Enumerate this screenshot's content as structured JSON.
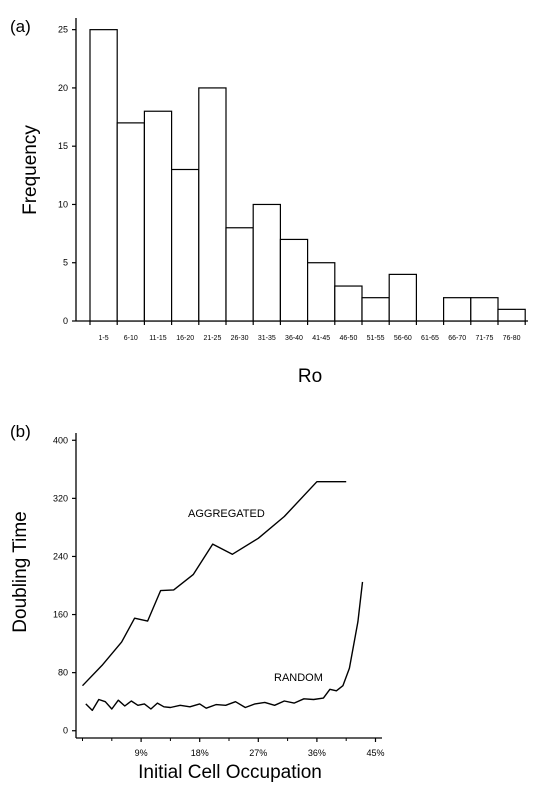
{
  "chart_data": [
    {
      "panel_label": "(a)",
      "type": "bar",
      "xlabel": "Ro",
      "ylabel": "Frequency",
      "ylim": [
        0,
        26
      ],
      "yticks": [
        0,
        5,
        10,
        15,
        20,
        25
      ],
      "categories": [
        "1-5",
        "6-10",
        "11-15",
        "16-20",
        "21-25",
        "26-30",
        "31-35",
        "36-40",
        "41-45",
        "46-50",
        "51-55",
        "56-60",
        "61-65",
        "66-70",
        "71-75",
        "76-80"
      ],
      "values": [
        25,
        17,
        18,
        13,
        20,
        8,
        10,
        7,
        5,
        3,
        2,
        4,
        0,
        2,
        2,
        1
      ]
    },
    {
      "panel_label": "(b)",
      "type": "line",
      "xlabel": "Initial Cell Occupation",
      "ylabel": "Doubling Time",
      "xlim": [
        -1,
        46
      ],
      "ylim": [
        -10,
        410
      ],
      "xticks": [
        9,
        18,
        27,
        36,
        45
      ],
      "xtick_labels": [
        "9%",
        "18%",
        "27%",
        "36%",
        "45%"
      ],
      "yticks": [
        0,
        80,
        160,
        240,
        320,
        400
      ],
      "series": [
        {
          "name": "AGGREGATED",
          "x": [
            0,
            3,
            6,
            8,
            10,
            12,
            14,
            17,
            20,
            23,
            27,
            31,
            36,
            40.5
          ],
          "y": [
            62,
            90,
            122,
            155,
            151,
            193,
            194,
            215,
            257,
            243,
            265,
            295,
            343,
            343
          ]
        },
        {
          "name": "RANDOM",
          "x": [
            0.5,
            1.5,
            2.5,
            3.5,
            4.5,
            5.5,
            6.5,
            7.5,
            8.5,
            9.5,
            10.5,
            11.5,
            12.5,
            13.5,
            15,
            16.5,
            18,
            19,
            20.5,
            22,
            23.5,
            25,
            26.5,
            28,
            29.5,
            31,
            32.5,
            34,
            35.5,
            37,
            38,
            39,
            40,
            41,
            42.3,
            43
          ],
          "y": [
            37,
            28,
            43,
            40,
            30,
            42,
            34,
            41,
            35,
            37,
            30,
            38,
            33,
            32,
            35,
            33,
            37,
            31,
            36,
            35,
            40,
            32,
            37,
            39,
            35,
            41,
            38,
            44,
            43,
            45,
            57,
            55,
            62,
            86,
            150,
            205
          ]
        }
      ]
    }
  ]
}
